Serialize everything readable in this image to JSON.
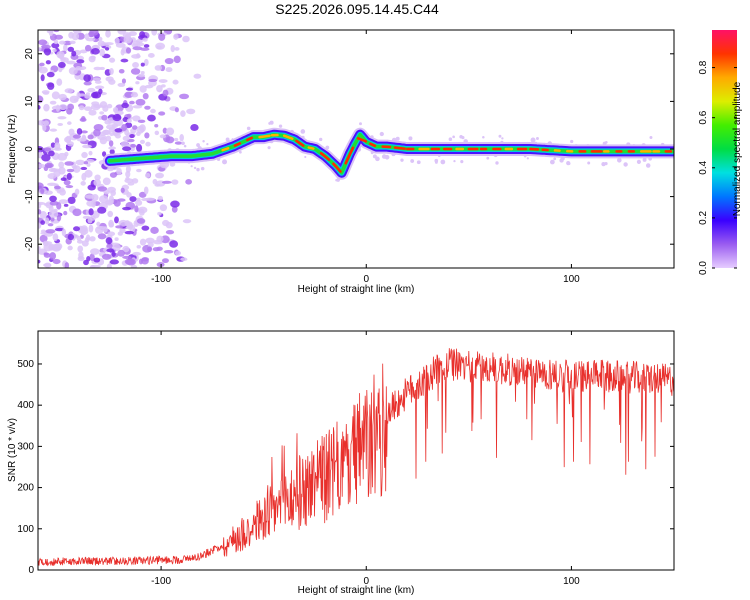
{
  "title": "S225.2026.095.14.45.C44",
  "chart_data": [
    {
      "type": "heatmap",
      "name": "spectrogram",
      "title": "S225.2026.095.14.45.C44",
      "xlabel": "Height of straight line (km)",
      "ylabel": "Frequency (Hz)",
      "xlim": [
        -160,
        150
      ],
      "ylim": [
        -25,
        25
      ],
      "xticks": [
        -100,
        0,
        100
      ],
      "yticks": [
        -20,
        -10,
        0,
        10,
        20
      ],
      "colorbar": {
        "label": "Normalized spectral amplitude",
        "range": [
          0,
          0.95
        ],
        "ticks": [
          0.0,
          0.2,
          0.4,
          0.6,
          0.8
        ]
      },
      "ridge_line": {
        "x": [
          -125,
          -110,
          -95,
          -85,
          -75,
          -65,
          -60,
          -55,
          -50,
          -45,
          -40,
          -35,
          -30,
          -25,
          -20,
          -15,
          -12,
          -10,
          -8,
          -5,
          -3,
          0,
          5,
          10,
          20,
          40,
          60,
          80,
          100,
          120,
          140,
          150
        ],
        "y": [
          -2.5,
          -2,
          -1.5,
          -1.5,
          -1,
          0.5,
          1.5,
          2.5,
          2.5,
          3,
          2.8,
          2,
          0.5,
          0,
          -1.5,
          -3.5,
          -5,
          -3,
          -1,
          1.5,
          3,
          1.5,
          0.5,
          0.5,
          0,
          0,
          0,
          0,
          -0.5,
          -0.5,
          -0.5,
          -0.5
        ]
      },
      "noise_region_x": [
        -160,
        -80
      ]
    },
    {
      "type": "line",
      "name": "snr",
      "xlabel": "Height of straight line (km)",
      "ylabel": "SNR (10 * v/v)",
      "xlim": [
        -160,
        150
      ],
      "ylim": [
        0,
        580
      ],
      "xticks": [
        -100,
        0,
        100
      ],
      "yticks": [
        0,
        100,
        200,
        300,
        400,
        500
      ],
      "series_color": "#e8302c",
      "trend": {
        "x": [
          -160,
          -120,
          -90,
          -80,
          -70,
          -60,
          -50,
          -40,
          -30,
          -20,
          -10,
          0,
          10,
          20,
          30,
          40,
          60,
          80,
          100,
          120,
          140,
          150
        ],
        "y": [
          20,
          22,
          25,
          35,
          60,
          100,
          140,
          180,
          215,
          245,
          280,
          330,
          380,
          430,
          470,
          500,
          490,
          480,
          470,
          470,
          465,
          460
        ]
      }
    }
  ]
}
